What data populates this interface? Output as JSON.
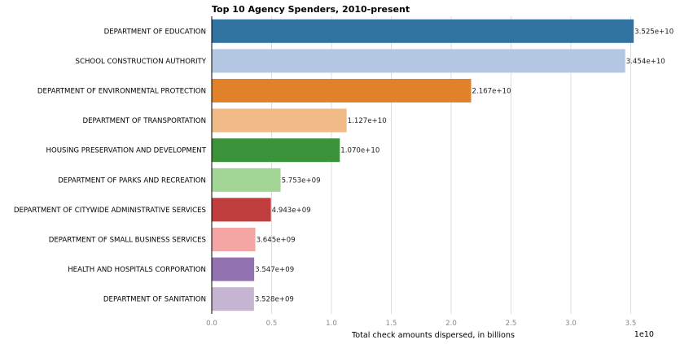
{
  "chart_data": {
    "type": "bar",
    "orientation": "horizontal",
    "title": "Top 10 Agency Spenders, 2010-present",
    "xlabel": "Total check amounts dispersed, in billions",
    "ylabel": "",
    "x_offset_label": "1e10",
    "xlim": [
      0,
      36000000000.0
    ],
    "xticks": [
      0,
      5000000000.0,
      10000000000.0,
      15000000000.0,
      20000000000.0,
      25000000000.0,
      30000000000.0,
      35000000000.0
    ],
    "xtick_labels": [
      "0.0",
      "0.5",
      "1.0",
      "1.5",
      "2.0",
      "2.5",
      "3.0",
      "3.5"
    ],
    "grid": "vertical",
    "categories": [
      "DEPARTMENT OF EDUCATION",
      "SCHOOL CONSTRUCTION AUTHORITY",
      "DEPARTMENT OF ENVIRONMENTAL PROTECTION",
      "DEPARTMENT OF TRANSPORTATION",
      "HOUSING PRESERVATION AND DEVELOPMENT",
      "DEPARTMENT OF PARKS AND RECREATION",
      "DEPARTMENT OF CITYWIDE ADMINISTRATIVE SERVICES",
      "DEPARTMENT OF SMALL BUSINESS SERVICES",
      "HEALTH AND HOSPITALS CORPORATION",
      "DEPARTMENT OF SANITATION"
    ],
    "values": [
      35250000000.0,
      34540000000.0,
      21670000000.0,
      11270000000.0,
      10700000000.0,
      5753000000.0,
      4943000000.0,
      3645000000.0,
      3547000000.0,
      3528000000.0
    ],
    "value_labels": [
      "3.525e+10",
      "3.454e+10",
      "2.167e+10",
      "1.127e+10",
      "1.070e+10",
      "5.753e+09",
      "4.943e+09",
      "3.645e+09",
      "3.547e+09",
      "3.528e+09"
    ],
    "colors": [
      "#3274a1",
      "#b3c7e2",
      "#e1812c",
      "#f0bb87",
      "#3a923a",
      "#a2d596",
      "#c03d3e",
      "#f4a6a5",
      "#9372b2",
      "#c5b5d3"
    ]
  }
}
